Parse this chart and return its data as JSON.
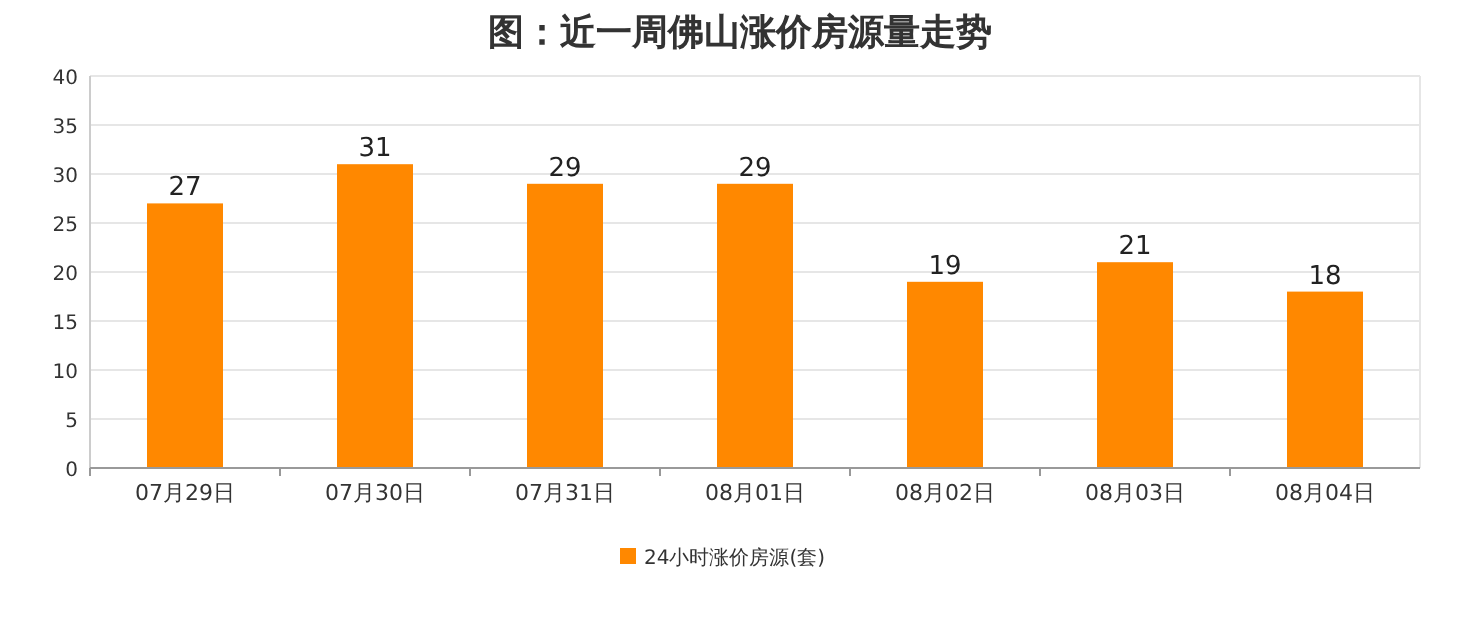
{
  "chart_data": {
    "type": "bar",
    "title": "图：近一周佛山涨价房源量走势",
    "categories": [
      "07月29日",
      "07月30日",
      "07月31日",
      "08月01日",
      "08月02日",
      "08月03日",
      "08月04日"
    ],
    "series": [
      {
        "name": "24小时涨价房源(套)",
        "color": "#ff8800",
        "values": [
          27,
          31,
          29,
          29,
          19,
          21,
          18
        ]
      }
    ],
    "ylim": [
      0,
      40
    ],
    "yticks": [
      0,
      5,
      10,
      15,
      20,
      25,
      30,
      35,
      40
    ],
    "grid": "y",
    "legend": "bottom",
    "data_labels": true
  }
}
